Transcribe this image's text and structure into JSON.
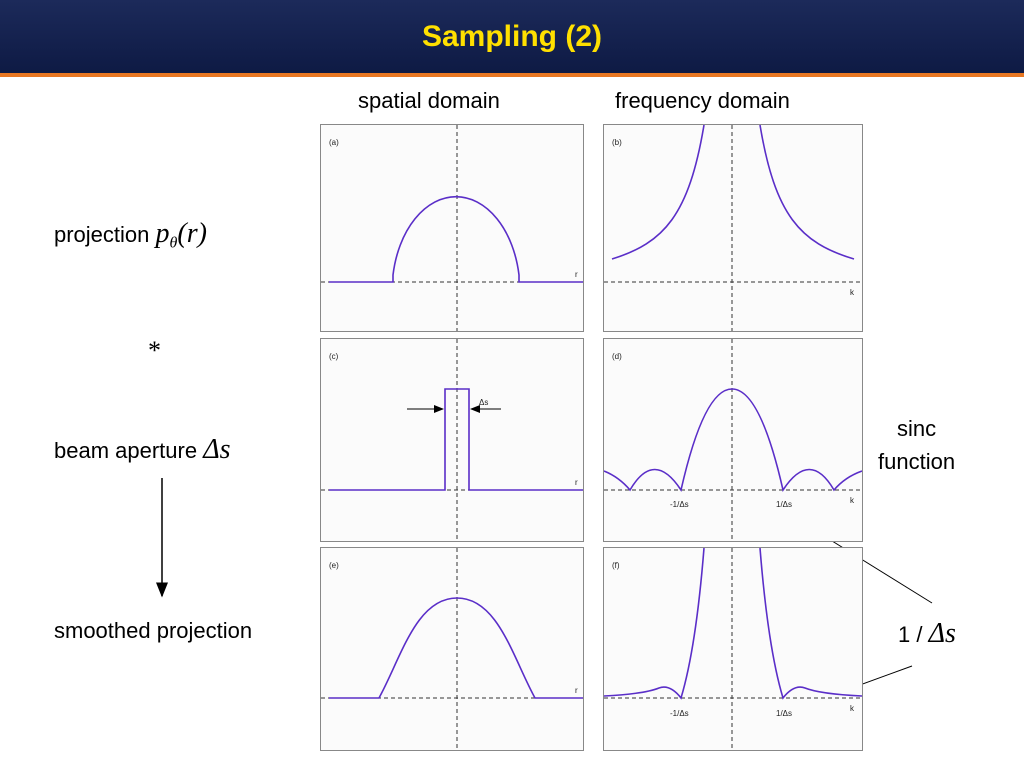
{
  "header": {
    "title": "Sampling (2)"
  },
  "columns": [
    "spatial domain",
    "frequency domain"
  ],
  "rows": [
    {
      "text": "projection",
      "symbol": "p",
      "subscript": "θ",
      "open": "(",
      "argument": "r",
      "close": ")"
    },
    {
      "text": "*"
    },
    {
      "text": "beam aperture",
      "symbol": "Δs"
    },
    {
      "text": "smoothed projection"
    }
  ],
  "annotations": {
    "sinc": [
      "sinc",
      "function"
    ],
    "inverse": {
      "prefix": "1 /",
      "symbol": "Δs"
    }
  },
  "panels": [
    {
      "label": "(a)",
      "axis": "r"
    },
    {
      "label": "(b)",
      "axis": "k"
    },
    {
      "label": "(c)",
      "axis": "r",
      "width": "Δs"
    },
    {
      "label": "(d)",
      "axis": "k",
      "ticks": [
        "-1/Δs",
        "1/Δs"
      ]
    },
    {
      "label": "(e)",
      "axis": "r"
    },
    {
      "label": "(f)",
      "axis": "k",
      "ticks": [
        "-1/Δs",
        "1/Δs"
      ]
    }
  ]
}
